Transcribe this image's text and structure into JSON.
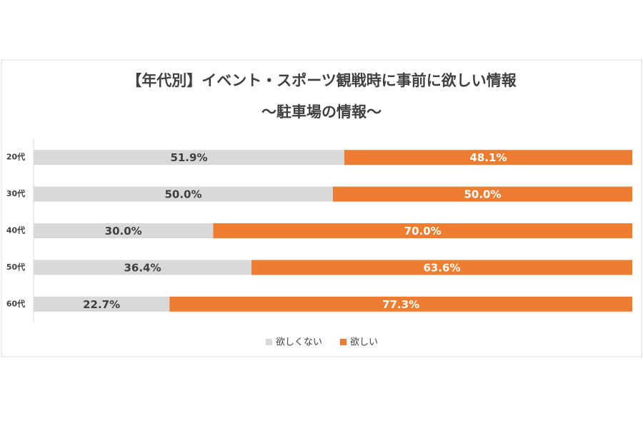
{
  "chart_data": {
    "type": "bar",
    "orientation": "horizontal",
    "stacked": true,
    "title": "【年代別】イベント・スポーツ観戦時に事前に欲しい情報",
    "subtitle": "～駐車場の情報～",
    "categories": [
      "20代",
      "30代",
      "40代",
      "50代",
      "60代"
    ],
    "xlim": [
      0,
      100
    ],
    "series": [
      {
        "name": "欲しくない",
        "color": "#d9d9d9",
        "label_color": "#404040",
        "values": [
          51.9,
          50.0,
          30.0,
          36.4,
          22.7
        ],
        "value_labels": [
          "51.9%",
          "50.0%",
          "30.0%",
          "36.4%",
          "22.7%"
        ]
      },
      {
        "name": "欲しい",
        "color": "#ed7d31",
        "label_color": "#ffffff",
        "values": [
          48.1,
          50.0,
          70.0,
          63.6,
          77.3
        ],
        "value_labels": [
          "48.1%",
          "50.0%",
          "70.0%",
          "63.6%",
          "77.3%"
        ]
      }
    ],
    "legend": "bottom"
  }
}
